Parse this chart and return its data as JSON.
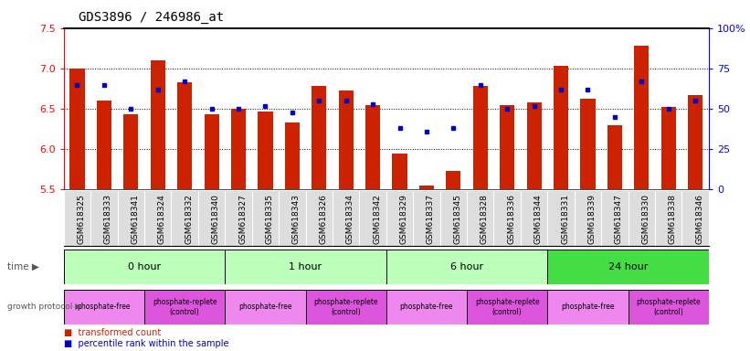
{
  "title": "GDS3896 / 246986_at",
  "samples": [
    "GSM618325",
    "GSM618333",
    "GSM618341",
    "GSM618324",
    "GSM618332",
    "GSM618340",
    "GSM618327",
    "GSM618335",
    "GSM618343",
    "GSM618326",
    "GSM618334",
    "GSM618342",
    "GSM618329",
    "GSM618337",
    "GSM618345",
    "GSM618328",
    "GSM618336",
    "GSM618344",
    "GSM618331",
    "GSM618339",
    "GSM618347",
    "GSM618330",
    "GSM618338",
    "GSM618346"
  ],
  "transformed_counts": [
    7.0,
    6.6,
    6.43,
    7.1,
    6.83,
    6.43,
    6.5,
    6.47,
    6.33,
    6.78,
    6.73,
    6.55,
    5.95,
    5.55,
    5.73,
    6.78,
    6.55,
    6.58,
    7.03,
    6.62,
    6.3,
    7.28,
    6.52,
    6.67
  ],
  "percentile_ranks": [
    65,
    65,
    50,
    62,
    67,
    50,
    50,
    52,
    48,
    55,
    55,
    53,
    38,
    36,
    38,
    65,
    50,
    52,
    62,
    62,
    45,
    67,
    50,
    55
  ],
  "time_groups": [
    {
      "label": "0 hour",
      "start": 0,
      "end": 6,
      "color": "#bbffbb"
    },
    {
      "label": "1 hour",
      "start": 6,
      "end": 12,
      "color": "#bbffbb"
    },
    {
      "label": "6 hour",
      "start": 12,
      "end": 18,
      "color": "#bbffbb"
    },
    {
      "label": "24 hour",
      "start": 18,
      "end": 24,
      "color": "#44dd44"
    }
  ],
  "protocol_spans": [
    {
      "label": "phosphate-free",
      "start": 0,
      "end": 3,
      "color": "#ee88ee"
    },
    {
      "label": "phosphate-replete\n(control)",
      "start": 3,
      "end": 6,
      "color": "#dd55dd"
    },
    {
      "label": "phosphate-free",
      "start": 6,
      "end": 9,
      "color": "#ee88ee"
    },
    {
      "label": "phosphate-replete\n(control)",
      "start": 9,
      "end": 12,
      "color": "#dd55dd"
    },
    {
      "label": "phosphate-free",
      "start": 12,
      "end": 15,
      "color": "#ee88ee"
    },
    {
      "label": "phosphate-replete\n(control)",
      "start": 15,
      "end": 18,
      "color": "#dd55dd"
    },
    {
      "label": "phosphate-free",
      "start": 18,
      "end": 21,
      "color": "#ee88ee"
    },
    {
      "label": "phosphate-replete\n(control)",
      "start": 21,
      "end": 24,
      "color": "#dd55dd"
    }
  ],
  "ylim_left": [
    5.5,
    7.5
  ],
  "ylim_right": [
    0,
    100
  ],
  "yticks_left": [
    5.5,
    6.0,
    6.5,
    7.0,
    7.5
  ],
  "yticks_right": [
    0,
    25,
    50,
    75,
    100
  ],
  "ytick_right_labels": [
    "0",
    "25",
    "50",
    "75",
    "100%"
  ],
  "bar_color": "#cc2200",
  "dot_color": "#0000cc",
  "bar_bottom": 5.5,
  "sample_bg_color": "#dddddd",
  "sample_label_fontsize": 6.5,
  "bar_width": 0.55
}
